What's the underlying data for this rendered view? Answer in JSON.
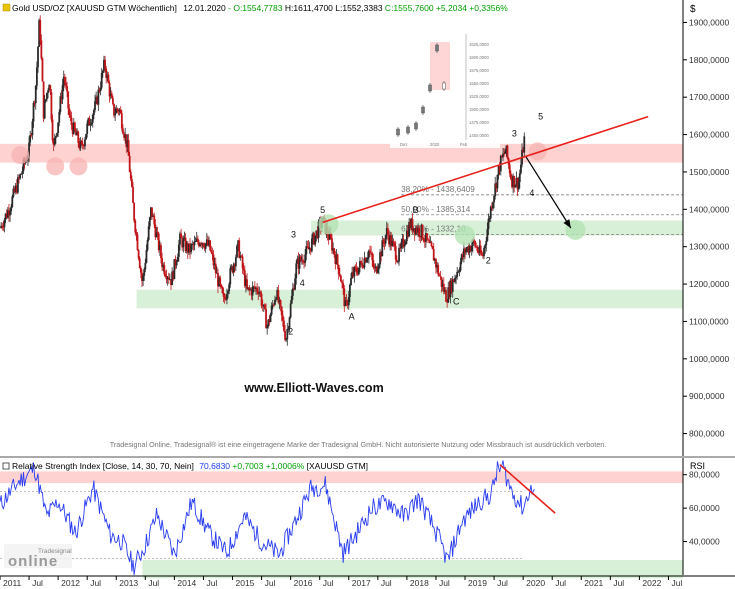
{
  "header": {
    "symbol": "Gold USD/OZ [XAUUSD GTM  Wöchentlich]",
    "date": "12.01.2020",
    "ohlc": [
      {
        "text": "- O:1554,7783",
        "color": "#00a000"
      },
      {
        "text": " H:1611,4700",
        "color": "#000000"
      },
      {
        "text": " L:1552,3383",
        "color": "#000000"
      },
      {
        "text": " C:1555,7600",
        "color": "#00a000"
      },
      {
        "text": " +5,2034 +0,3356%",
        "color": "#00a000"
      }
    ],
    "currency": "$"
  },
  "watermark": "www.Elliott-Waves.com",
  "disclaimer": "Tradesignal Online. Tradesignal® ist eine eingetragene Marke der Tradesignal GmbH. Nicht autorisierte Nutzung oder Missbrauch ist ausdrücklich verboten.",
  "logo": {
    "small": "Tradesignal",
    "big": "online"
  },
  "chart_data": [
    {
      "type": "candlestick",
      "title": "Gold USD/OZ [XAUUSD GTM  Wöchentlich]",
      "ylim": [
        740,
        1960
      ],
      "y_ticks": [
        "1900,0000",
        "1800,0000",
        "1700,0000",
        "1600,0000",
        "1500,0000",
        "1400,0000",
        "1300,0000",
        "1200,0000",
        "1100,0000",
        "1000,0000",
        "900,0000",
        "800,0000"
      ],
      "y_tick_values": [
        1900,
        1800,
        1700,
        1600,
        1500,
        1400,
        1300,
        1200,
        1100,
        1000,
        900,
        800
      ],
      "x_range": [
        2011.0,
        2022.75
      ],
      "price_path": [
        [
          2011.0,
          1350
        ],
        [
          2011.15,
          1400
        ],
        [
          2011.33,
          1480
        ],
        [
          2011.5,
          1560
        ],
        [
          2011.62,
          1740
        ],
        [
          2011.68,
          1910
        ],
        [
          2011.75,
          1660
        ],
        [
          2011.85,
          1750
        ],
        [
          2011.92,
          1560
        ],
        [
          2012.0,
          1640
        ],
        [
          2012.1,
          1760
        ],
        [
          2012.2,
          1640
        ],
        [
          2012.4,
          1560
        ],
        [
          2012.5,
          1620
        ],
        [
          2012.65,
          1680
        ],
        [
          2012.8,
          1790
        ],
        [
          2012.95,
          1660
        ],
        [
          2013.05,
          1670
        ],
        [
          2013.2,
          1560
        ],
        [
          2013.3,
          1390
        ],
        [
          2013.45,
          1200
        ],
        [
          2013.6,
          1400
        ],
        [
          2013.8,
          1250
        ],
        [
          2013.95,
          1210
        ],
        [
          2014.1,
          1320
        ],
        [
          2014.25,
          1290
        ],
        [
          2014.45,
          1320
        ],
        [
          2014.6,
          1300
        ],
        [
          2014.85,
          1150
        ],
        [
          2014.95,
          1220
        ],
        [
          2015.1,
          1300
        ],
        [
          2015.25,
          1180
        ],
        [
          2015.45,
          1190
        ],
        [
          2015.6,
          1085
        ],
        [
          2015.75,
          1180
        ],
        [
          2015.92,
          1055
        ],
        [
          2016.1,
          1250
        ],
        [
          2016.3,
          1290
        ],
        [
          2016.55,
          1370
        ],
        [
          2016.7,
          1310
        ],
        [
          2016.85,
          1230
        ],
        [
          2016.95,
          1130
        ],
        [
          2017.05,
          1220
        ],
        [
          2017.2,
          1250
        ],
        [
          2017.35,
          1290
        ],
        [
          2017.45,
          1230
        ],
        [
          2017.65,
          1340
        ],
        [
          2017.85,
          1270
        ],
        [
          2017.98,
          1330
        ],
        [
          2018.05,
          1360
        ],
        [
          2018.25,
          1340
        ],
        [
          2018.45,
          1280
        ],
        [
          2018.6,
          1200
        ],
        [
          2018.68,
          1165
        ],
        [
          2018.85,
          1230
        ],
        [
          2019.0,
          1290
        ],
        [
          2019.15,
          1310
        ],
        [
          2019.3,
          1270
        ],
        [
          2019.45,
          1410
        ],
        [
          2019.6,
          1520
        ],
        [
          2019.7,
          1560
        ],
        [
          2019.8,
          1480
        ],
        [
          2019.92,
          1470
        ],
        [
          2020.03,
          1600
        ]
      ],
      "resistance_zones": [
        {
          "from": 1525,
          "to": 1575
        }
      ],
      "support_zones": [
        {
          "from": 1330,
          "to": 1370
        },
        {
          "from": 1135,
          "to": 1185
        }
      ],
      "fib_levels": [
        {
          "label": "38,20% - 1438,6409",
          "value": 1438.64
        },
        {
          "label": "50,00% - 1385,314",
          "value": 1385.31
        },
        {
          "label": "61,80% - 1332,10",
          "value": 1332.1
        }
      ],
      "trendline": {
        "from": [
          2016.55,
          1365
        ],
        "to": [
          2022.15,
          1648
        ]
      },
      "forecast_arrow": {
        "from": [
          2020.05,
          1540
        ],
        "to": [
          2020.82,
          1350
        ]
      },
      "wave_labels": [
        {
          "text": "5",
          "x": 2016.55,
          "y": 1390
        },
        {
          "text": "3",
          "x": 2016.05,
          "y": 1325
        },
        {
          "text": "4",
          "x": 2016.2,
          "y": 1195
        },
        {
          "text": "2",
          "x": 2016.0,
          "y": 1065
        },
        {
          "text": "A",
          "x": 2017.05,
          "y": 1105
        },
        {
          "text": "B",
          "x": 2018.15,
          "y": 1390
        },
        {
          "text": "C",
          "x": 2018.85,
          "y": 1145
        },
        {
          "text": "2",
          "x": 2019.4,
          "y": 1255
        },
        {
          "text": "3",
          "x": 2019.85,
          "y": 1595
        },
        {
          "text": "4",
          "x": 2020.15,
          "y": 1435
        },
        {
          "text": "5",
          "x": 2020.3,
          "y": 1640
        }
      ],
      "inset_ticks": [
        "1625,0000",
        "1600,0000",
        "1575,0000",
        "1550,0000",
        "1525,0000",
        "1500,0000",
        "1475,0000",
        "1450,0000"
      ],
      "inset_xlabels": [
        "Dez",
        "2020",
        "Feb"
      ]
    },
    {
      "type": "line",
      "title": "Relative Strength Index [Close, 14, 30, 70, Nein]",
      "value_text": "70,6830",
      "change_text": " +0,7003 +1,0006%",
      "instrument_text": " [XAUUSD GTM]",
      "axis_title": "RSI",
      "ylim": [
        20,
        90
      ],
      "y_ticks": [
        "80,0000",
        "60,0000",
        "40,0000"
      ],
      "y_tick_values": [
        80,
        60,
        40
      ],
      "reference_lines": [
        70,
        30
      ],
      "zones": [
        {
          "from": 75,
          "to": 82
        },
        {
          "from": 18,
          "to": 29
        }
      ],
      "rsi_path": [
        [
          2011.0,
          62
        ],
        [
          2011.3,
          75
        ],
        [
          2011.6,
          84
        ],
        [
          2011.8,
          55
        ],
        [
          2012.0,
          64
        ],
        [
          2012.3,
          45
        ],
        [
          2012.6,
          72
        ],
        [
          2012.9,
          44
        ],
        [
          2013.1,
          40
        ],
        [
          2013.3,
          25
        ],
        [
          2013.5,
          38
        ],
        [
          2013.7,
          56
        ],
        [
          2014.0,
          32
        ],
        [
          2014.3,
          64
        ],
        [
          2014.6,
          45
        ],
        [
          2014.9,
          33
        ],
        [
          2015.2,
          55
        ],
        [
          2015.5,
          40
        ],
        [
          2015.8,
          32
        ],
        [
          2016.05,
          50
        ],
        [
          2016.35,
          72
        ],
        [
          2016.6,
          74
        ],
        [
          2016.9,
          33
        ],
        [
          2017.1,
          43
        ],
        [
          2017.4,
          60
        ],
        [
          2017.7,
          64
        ],
        [
          2017.95,
          55
        ],
        [
          2018.2,
          66
        ],
        [
          2018.55,
          42
        ],
        [
          2018.7,
          28
        ],
        [
          2018.95,
          52
        ],
        [
          2019.25,
          64
        ],
        [
          2019.45,
          68
        ],
        [
          2019.55,
          82
        ],
        [
          2019.65,
          85
        ],
        [
          2019.8,
          70
        ],
        [
          2020.0,
          60
        ],
        [
          2020.1,
          70
        ],
        [
          2020.2,
          70.7
        ]
      ],
      "trendline": {
        "from": [
          2019.6,
          86
        ],
        "to": [
          2020.55,
          57
        ]
      }
    }
  ],
  "x_axis_labels": [
    {
      "text": "2011",
      "x": 2011.0
    },
    {
      "text": "Jul",
      "x": 2011.5
    },
    {
      "text": "2012",
      "x": 2012.0
    },
    {
      "text": "Jul",
      "x": 2012.5
    },
    {
      "text": "2013",
      "x": 2013.0
    },
    {
      "text": "Jul",
      "x": 2013.5
    },
    {
      "text": "2014",
      "x": 2014.0
    },
    {
      "text": "Jul",
      "x": 2014.5
    },
    {
      "text": "2015",
      "x": 2015.0
    },
    {
      "text": "Jul",
      "x": 2015.5
    },
    {
      "text": "2016",
      "x": 2016.0
    },
    {
      "text": "Jul",
      "x": 2016.5
    },
    {
      "text": "2017",
      "x": 2017.0
    },
    {
      "text": "Jul",
      "x": 2017.5
    },
    {
      "text": "2018",
      "x": 2018.0
    },
    {
      "text": "Jul",
      "x": 2018.5
    },
    {
      "text": "2019",
      "x": 2019.0
    },
    {
      "text": "Jul",
      "x": 2019.5
    },
    {
      "text": "2020",
      "x": 2020.0
    },
    {
      "text": "Jul",
      "x": 2020.5
    },
    {
      "text": "2021",
      "x": 2021.0
    },
    {
      "text": "Jul",
      "x": 2021.5
    },
    {
      "text": "2022",
      "x": 2022.0
    },
    {
      "text": "Jul",
      "x": 2022.5
    }
  ],
  "colors": {
    "up_candle": "#2a2a2a",
    "down_candle": "#c0161a",
    "resistance": "#ffd2d2",
    "support": "#d8f0d8",
    "trendline": "#e8201a",
    "rsi_line": "#2a3df0",
    "circle_red": "#f7b2b2",
    "circle_green": "#b4e4b4"
  }
}
